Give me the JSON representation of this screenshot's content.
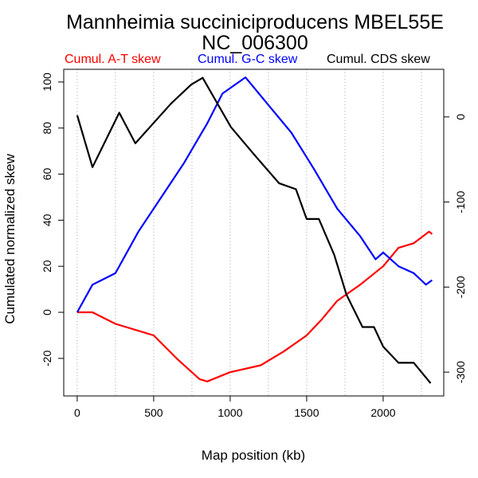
{
  "chart_data": {
    "type": "line",
    "title": "Mannheimia succiniciproducens MBEL55E",
    "subtitle": "NC_006300",
    "xlabel": "Map position (kb)",
    "ylabel": "Cumulated normalized skew",
    "xlim": [
      -88,
      2396
    ],
    "ylim": [
      -36.3,
      105.5
    ],
    "y2lim": [
      -328,
      56
    ],
    "xticks": [
      0,
      500,
      1000,
      1500,
      2000
    ],
    "yticks": [
      -20,
      0,
      20,
      40,
      60,
      80,
      100
    ],
    "y2ticks": [
      0,
      -100,
      -200,
      -300
    ],
    "grid_x": [
      0,
      250,
      500,
      750,
      1000,
      1250,
      1500,
      1750,
      2000,
      2250
    ],
    "legend": [
      "Cumul. A-T skew",
      "Cumul. G-C skew",
      "Cumul. CDS skew"
    ],
    "legend_placement": "top",
    "series": [
      {
        "name": "Cumul. A-T skew",
        "color": "#ff0000",
        "axis": "left",
        "x": [
          0,
          100,
          250,
          400,
          500,
          650,
          800,
          850,
          1000,
          1200,
          1350,
          1500,
          1600,
          1700,
          1850,
          2000,
          2100,
          2200,
          2300,
          2320
        ],
        "y": [
          0,
          0,
          -5,
          -8,
          -10,
          -20,
          -29,
          -30,
          -26,
          -23,
          -17,
          -10,
          -3,
          5,
          12,
          20,
          28,
          30,
          35,
          34
        ]
      },
      {
        "name": "Cumul. G-C skew",
        "color": "#0000ff",
        "axis": "left",
        "x": [
          0,
          100,
          250,
          400,
          550,
          700,
          850,
          950,
          1100,
          1250,
          1400,
          1550,
          1700,
          1850,
          1950,
          2000,
          2100,
          2200,
          2280,
          2320
        ],
        "y": [
          0,
          12,
          17,
          35,
          50,
          65,
          82,
          95,
          102,
          90,
          78,
          62,
          45,
          33,
          23,
          26,
          20,
          17,
          12,
          14
        ]
      },
      {
        "name": "Cumul. CDS skew",
        "color": "#000000",
        "axis": "right",
        "x": [
          0,
          100,
          275,
          380,
          615,
          745,
          820,
          1005,
          1160,
          1320,
          1430,
          1500,
          1580,
          1680,
          1760,
          1865,
          1940,
          2000,
          2100,
          2200,
          2310
        ],
        "y": [
          2,
          -59,
          5,
          -31,
          16,
          38,
          46,
          -12,
          -45,
          -78,
          -85,
          -120,
          -120,
          -162,
          -209,
          -247,
          -247,
          -270,
          -289,
          -289,
          -313
        ]
      }
    ]
  }
}
